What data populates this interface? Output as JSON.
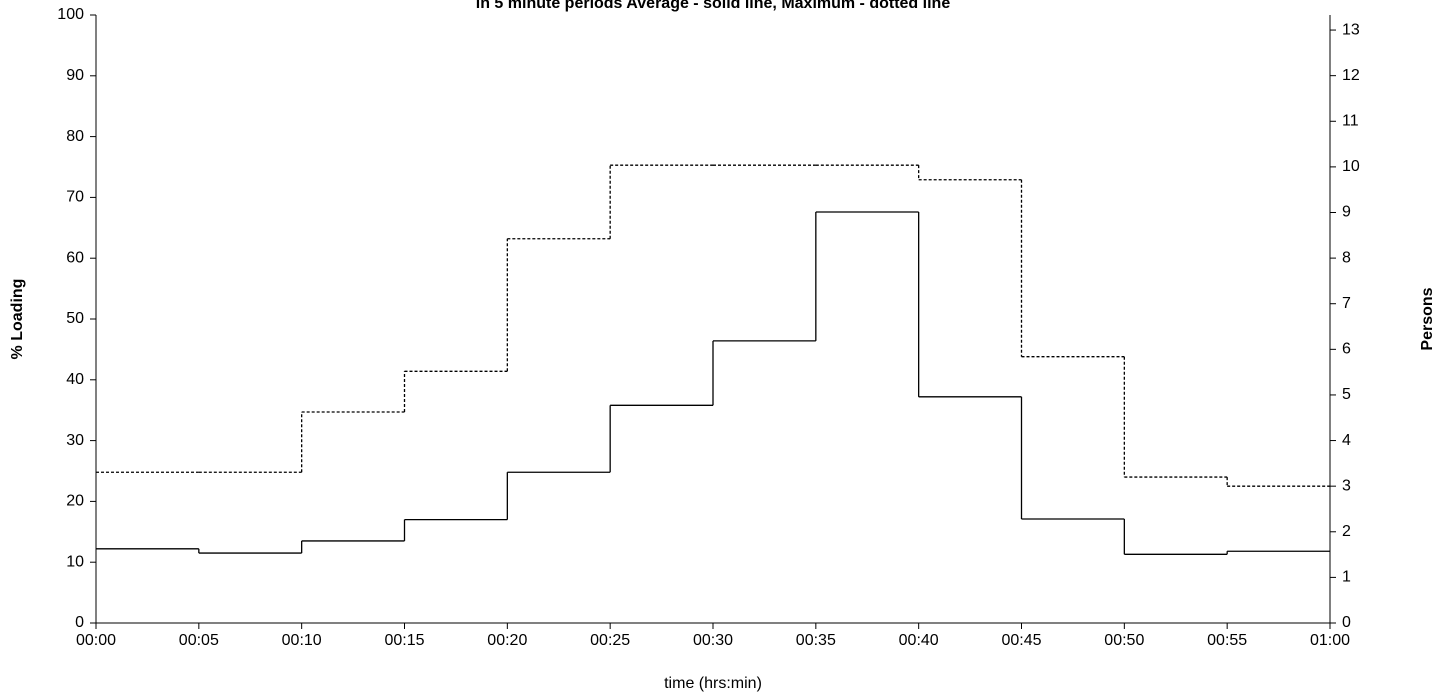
{
  "chart_data": {
    "type": "step-line",
    "title": "in 5 minute periods  Average - solid line,  Maximum - dotted line",
    "x_label": "time (hrs:min)",
    "y_label": "% Loading",
    "y2_label": "Persons",
    "x": [
      0,
      5,
      10,
      15,
      20,
      25,
      30,
      35,
      40,
      45,
      50,
      55
    ],
    "step_width": 5,
    "xlim": [
      0,
      60
    ],
    "xticks": [
      {
        "value": 0,
        "label": "00:00"
      },
      {
        "value": 5,
        "label": "00:05"
      },
      {
        "value": 10,
        "label": "00:10"
      },
      {
        "value": 15,
        "label": "00:15"
      },
      {
        "value": 20,
        "label": "00:20"
      },
      {
        "value": 25,
        "label": "00:25"
      },
      {
        "value": 30,
        "label": "00:30"
      },
      {
        "value": 35,
        "label": "00:35"
      },
      {
        "value": 40,
        "label": "00:40"
      },
      {
        "value": 45,
        "label": "00:45"
      },
      {
        "value": 50,
        "label": "00:50"
      },
      {
        "value": 55,
        "label": "00:55"
      },
      {
        "value": 60,
        "label": "01:00"
      }
    ],
    "ylim": [
      0,
      100
    ],
    "yticks": [
      0,
      10,
      20,
      30,
      40,
      50,
      60,
      70,
      80,
      90,
      100
    ],
    "y2lim": [
      0,
      13.33
    ],
    "y2ticks": [
      0,
      1,
      2,
      3,
      4,
      5,
      6,
      7,
      8,
      9,
      10,
      11,
      12,
      13
    ],
    "series": [
      {
        "color": "#000000",
        "dash": "none",
        "values": [
          12.2,
          11.5,
          13.5,
          17,
          24.8,
          35.8,
          46.4,
          67.6,
          37.2,
          17.1,
          11.3,
          11.8
        ]
      },
      {
        "color": "#000000",
        "dash": "3,2",
        "values": [
          24.8,
          24.8,
          34.7,
          41.4,
          63.2,
          75.3,
          75.3,
          75.3,
          72.9,
          43.8,
          24,
          22.5
        ]
      }
    ]
  }
}
